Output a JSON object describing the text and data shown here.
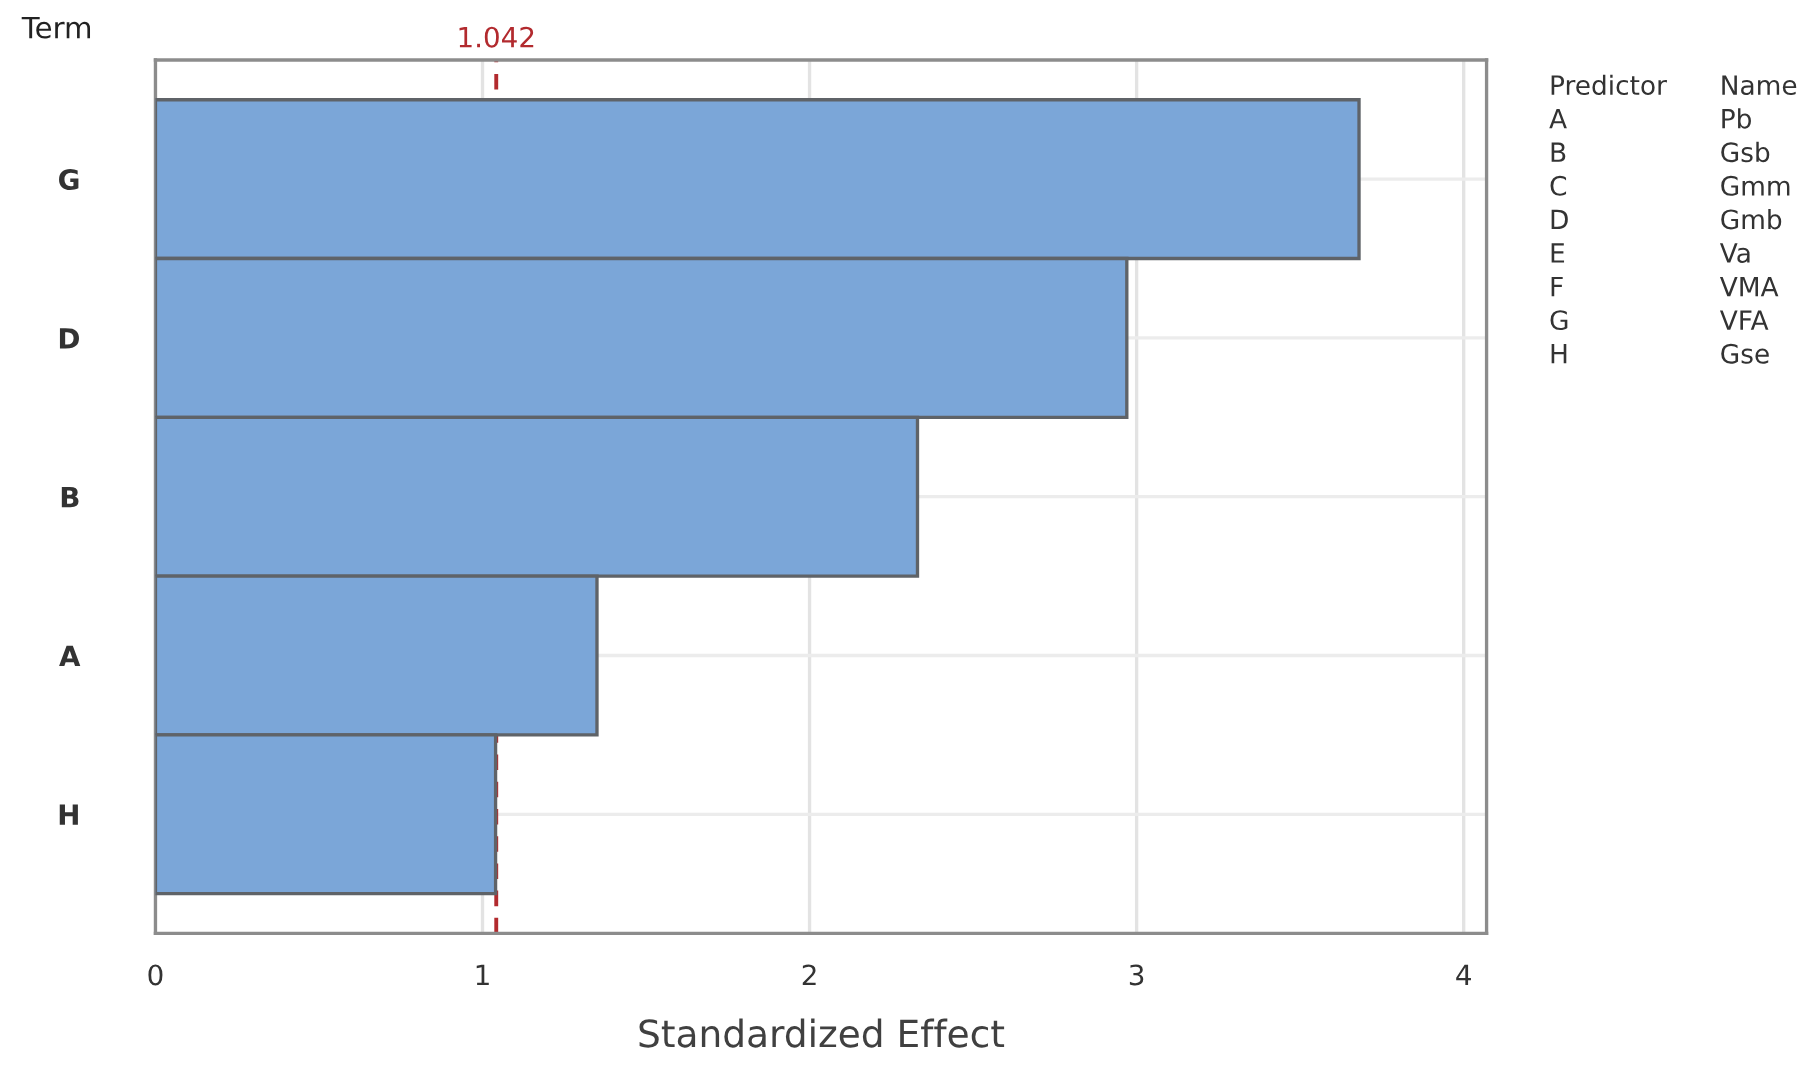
{
  "chart_data": {
    "type": "bar",
    "orientation": "horizontal",
    "ylabel": "Term",
    "xlabel": "Standardized Effect",
    "categories": [
      "G",
      "D",
      "B",
      "A",
      "H"
    ],
    "values": [
      3.68,
      2.97,
      2.33,
      1.35,
      1.04
    ],
    "color": "#7ba6d8",
    "xlim": [
      0,
      4.07
    ],
    "xticks": [
      0,
      1,
      2,
      3,
      4
    ],
    "grid": true,
    "ref_lines": [
      {
        "axis": "x",
        "value": 1.042,
        "label": "1.042",
        "color": "#b22a2e",
        "line_style": "dashed"
      }
    ],
    "annotations": [
      "Predictor",
      "Name",
      "A",
      "Pb",
      "B",
      "Gsb",
      "C",
      "Gmm",
      "D",
      "Gmb",
      "E",
      "Va",
      "F",
      "VMA",
      "G",
      "VFA",
      "H",
      "Gse"
    ]
  }
}
